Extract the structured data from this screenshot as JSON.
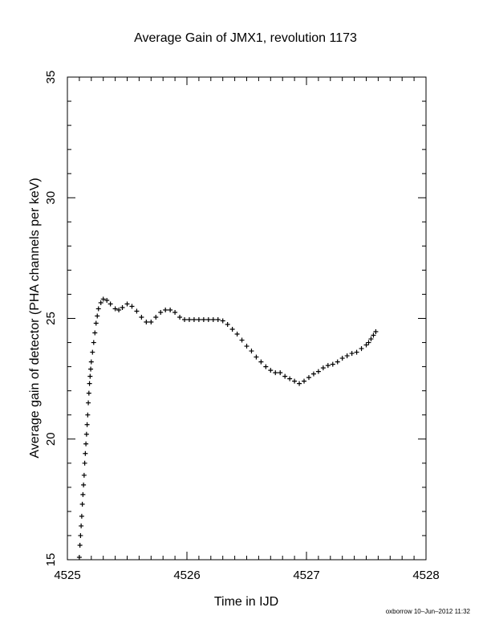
{
  "chart_data": {
    "type": "scatter",
    "title": "Average Gain of JMX1, revolution 1173",
    "xlabel": "Time in IJD",
    "ylabel": "Average gain of detector (PHA channels per keV)",
    "xlim": [
      4525,
      4528
    ],
    "ylim": [
      15,
      35
    ],
    "xticks": [
      4525,
      4526,
      4527,
      4528
    ],
    "yticks": [
      15,
      20,
      25,
      30,
      35
    ],
    "x_minor_step": 0.1,
    "y_minor_step": 1,
    "grid": false,
    "marker": "plus",
    "color": "#000000",
    "series": [
      {
        "points": [
          [
            4525.1,
            15.1
          ],
          [
            4525.105,
            15.6
          ],
          [
            4525.11,
            16.0
          ],
          [
            4525.115,
            16.4
          ],
          [
            4525.12,
            16.8
          ],
          [
            4525.125,
            17.3
          ],
          [
            4525.13,
            17.7
          ],
          [
            4525.135,
            18.1
          ],
          [
            4525.14,
            18.5
          ],
          [
            4525.145,
            19.0
          ],
          [
            4525.15,
            19.4
          ],
          [
            4525.155,
            19.8
          ],
          [
            4525.16,
            20.2
          ],
          [
            4525.165,
            20.6
          ],
          [
            4525.17,
            21.0
          ],
          [
            4525.175,
            21.5
          ],
          [
            4525.18,
            21.9
          ],
          [
            4525.185,
            22.3
          ],
          [
            4525.19,
            22.6
          ],
          [
            4525.195,
            22.9
          ],
          [
            4525.2,
            23.2
          ],
          [
            4525.21,
            23.6
          ],
          [
            4525.22,
            24.0
          ],
          [
            4525.23,
            24.4
          ],
          [
            4525.24,
            24.8
          ],
          [
            4525.25,
            25.1
          ],
          [
            4525.26,
            25.4
          ],
          [
            4525.28,
            25.65
          ],
          [
            4525.3,
            25.8
          ],
          [
            4525.33,
            25.75
          ],
          [
            4525.36,
            25.6
          ],
          [
            4525.4,
            25.4
          ],
          [
            4525.43,
            25.35
          ],
          [
            4525.46,
            25.45
          ],
          [
            4525.5,
            25.6
          ],
          [
            4525.54,
            25.5
          ],
          [
            4525.58,
            25.3
          ],
          [
            4525.62,
            25.05
          ],
          [
            4525.66,
            24.85
          ],
          [
            4525.7,
            24.85
          ],
          [
            4525.74,
            25.05
          ],
          [
            4525.78,
            25.25
          ],
          [
            4525.82,
            25.35
          ],
          [
            4525.86,
            25.35
          ],
          [
            4525.9,
            25.25
          ],
          [
            4525.94,
            25.05
          ],
          [
            4525.98,
            24.95
          ],
          [
            4526.02,
            24.95
          ],
          [
            4526.06,
            24.95
          ],
          [
            4526.1,
            24.95
          ],
          [
            4526.14,
            24.95
          ],
          [
            4526.18,
            24.95
          ],
          [
            4526.22,
            24.95
          ],
          [
            4526.26,
            24.95
          ],
          [
            4526.3,
            24.9
          ],
          [
            4526.34,
            24.75
          ],
          [
            4526.38,
            24.55
          ],
          [
            4526.42,
            24.35
          ],
          [
            4526.46,
            24.1
          ],
          [
            4526.5,
            23.85
          ],
          [
            4526.54,
            23.65
          ],
          [
            4526.58,
            23.4
          ],
          [
            4526.62,
            23.2
          ],
          [
            4526.66,
            23.0
          ],
          [
            4526.7,
            22.85
          ],
          [
            4526.74,
            22.75
          ],
          [
            4526.78,
            22.75
          ],
          [
            4526.82,
            22.6
          ],
          [
            4526.86,
            22.5
          ],
          [
            4526.9,
            22.4
          ],
          [
            4526.94,
            22.3
          ],
          [
            4526.98,
            22.4
          ],
          [
            4527.02,
            22.55
          ],
          [
            4527.06,
            22.7
          ],
          [
            4527.1,
            22.8
          ],
          [
            4527.14,
            22.95
          ],
          [
            4527.18,
            23.05
          ],
          [
            4527.22,
            23.1
          ],
          [
            4527.26,
            23.2
          ],
          [
            4527.3,
            23.35
          ],
          [
            4527.34,
            23.45
          ],
          [
            4527.38,
            23.55
          ],
          [
            4527.42,
            23.6
          ],
          [
            4527.46,
            23.75
          ],
          [
            4527.5,
            23.9
          ],
          [
            4527.52,
            24.0
          ],
          [
            4527.54,
            24.15
          ],
          [
            4527.56,
            24.3
          ],
          [
            4527.58,
            24.45
          ]
        ]
      }
    ]
  },
  "footer": {
    "credit": "oxborrow 10–Jun–2012 11:32"
  }
}
